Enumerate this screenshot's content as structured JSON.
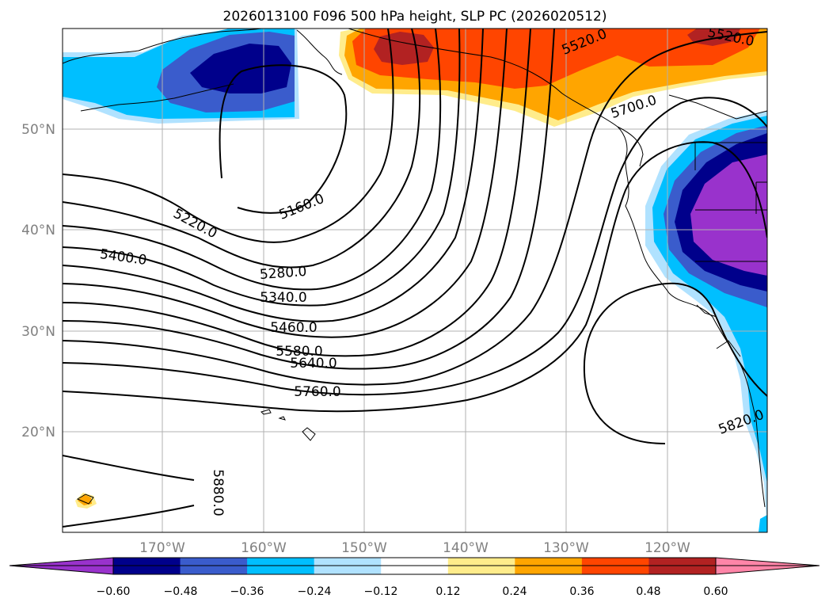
{
  "title": "2026013100 F096 500 hPa height, SLP PC (2026020512)",
  "latitude_labels": [
    "50°N",
    "40°N",
    "30°N",
    "20°N"
  ],
  "longitude_labels": [
    "170°W",
    "160°W",
    "150°W",
    "140°W",
    "130°W",
    "120°W"
  ],
  "contour_labels": [
    "5160.0",
    "5220.0",
    "5280.0",
    "5340.0",
    "5400.0",
    "5460.0",
    "5520.0",
    "5520.0",
    "5580.0",
    "5640.0",
    "5700.0",
    "5760.0",
    "5820.0",
    "5880.0"
  ],
  "colorbar": {
    "tick_labels": [
      "−0.60",
      "−0.48",
      "−0.36",
      "−0.24",
      "−0.12",
      "0.12",
      "0.24",
      "0.36",
      "0.48",
      "0.60"
    ],
    "colors": [
      "#9932cc",
      "#00008b",
      "#3a5ccc",
      "#00bfff",
      "#b0e2ff",
      "#ffffff",
      "#ffec8b",
      "#ffa500",
      "#ff4500",
      "#b22222",
      "#ff85a8"
    ]
  }
}
